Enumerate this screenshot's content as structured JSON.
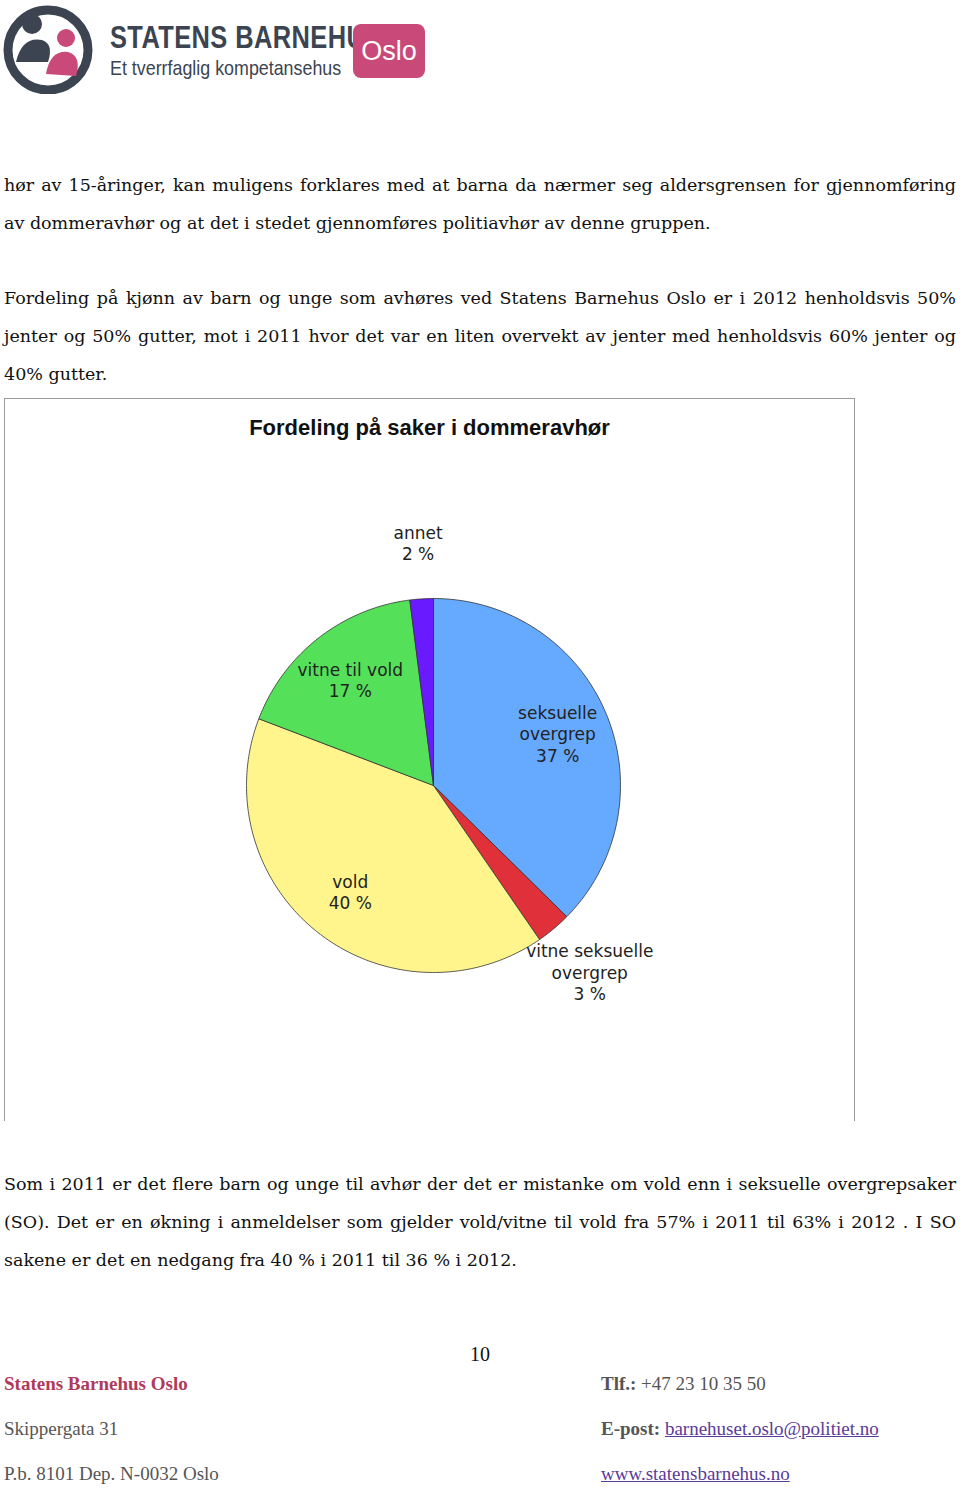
{
  "header": {
    "title": "STATENS BARNEHUS",
    "subtitle": "Et tverrfaglig kompetansehus",
    "badge": "Oslo"
  },
  "paragraphs_before": [
    "hør av 15-åringer, kan muligens forklares med at barna da nærmer seg aldersgrensen for gjennomføring av dommeravhør og at det i stedet gjennomføres politiavhør av denne gruppen.",
    "Fordeling på kjønn av barn og unge som avhøres ved Statens Barnehus Oslo er i 2012 henholdsvis 50% jenter og 50% gutter, mot i 2011 hvor det var en liten overvekt av jenter med henholdsvis 60% jenter og 40% gutter."
  ],
  "chart_data": {
    "type": "pie",
    "title": "Fordeling på saker i dommeravhør",
    "categories": [
      "seksuelle overgrep",
      "vitne seksuelle overgrep",
      "vold",
      "vitne til vold",
      "annet"
    ],
    "values": [
      37,
      3,
      40,
      17,
      2
    ],
    "value_labels": [
      "37 %",
      "3 %",
      "40 %",
      "17 %",
      "2 %"
    ],
    "colors": [
      "#66aaff",
      "#e0303a",
      "#fff58c",
      "#55e05a",
      "#6a1aff"
    ],
    "data_labels": true
  },
  "paragraphs_after": [
    "Som i 2011 er det flere barn og unge til avhør der det er mistanke om vold enn i seksuelle overgrepsaker (SO). Det er en økning i anmeldelser som gjelder vold/vitne til vold fra 57%  i 2011 til 63% i 2012 . I SO sakene er det en nedgang fra 40 % i 2011 til 36 %  i 2012."
  ],
  "footer": {
    "page": 10,
    "name": "Statens Barnehus Oslo",
    "phone_label": "Tlf.:",
    "phone": "+47 23 10 35 50",
    "address": "Skippergata 31",
    "email_label": "E-post:",
    "email": "barnehuset.oslo@politiet.no",
    "postbox": "P.b. 8101 Dep. N-0032 Oslo",
    "web": "www.statensbarnehus.no"
  }
}
